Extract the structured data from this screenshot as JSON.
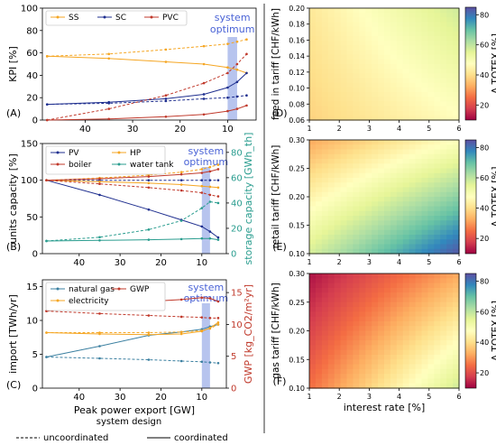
{
  "colors": {
    "ss": "#f5a623",
    "sc": "#1f2f8f",
    "pvc": "#c0392b",
    "pv": "#1f2f8f",
    "boiler": "#c0392b",
    "hp": "#f5a623",
    "water_tank": "#2a9d8f",
    "natural_gas": "#3a7fa0",
    "electricity": "#f5a623",
    "gwp": "#c0392b",
    "optimum_band": "#9fb0e8",
    "optimum_text": "#4a63d6",
    "storage_axis": "#2a9d8f",
    "gwp_axis": "#c0392b"
  },
  "optimum_label": [
    "system",
    "optimum"
  ],
  "legend_bottom": {
    "title": "system design",
    "dashed": "uncoordinated",
    "solid": "coordinated"
  },
  "chart_data": [
    {
      "id": "A",
      "panel_label": "(A)",
      "type": "line",
      "ylabel": "KPI [%]",
      "xlabel": "",
      "xlim": [
        49,
        4
      ],
      "ylim": [
        0,
        100
      ],
      "x_ticks": [
        40,
        30,
        20,
        10
      ],
      "y_ticks": [
        0,
        20,
        40,
        60,
        80,
        100
      ],
      "optimum_range": [
        10,
        8
      ],
      "legend": [
        "SS",
        "SC",
        "PVC"
      ],
      "series": [
        {
          "name": "SS",
          "style": "dashed",
          "color_key": "ss",
          "x": [
            48,
            35,
            23,
            15,
            10,
            8,
            6
          ],
          "y": [
            57,
            59,
            63,
            66,
            68,
            70,
            72
          ]
        },
        {
          "name": "SS",
          "style": "solid",
          "color_key": "ss",
          "x": [
            48,
            35,
            23,
            15,
            10,
            8,
            6
          ],
          "y": [
            57,
            55,
            52,
            50,
            47,
            45,
            42
          ]
        },
        {
          "name": "SC",
          "style": "dashed",
          "color_key": "sc",
          "x": [
            48,
            35,
            23,
            15,
            10,
            8,
            6
          ],
          "y": [
            14,
            15,
            17,
            19,
            20,
            21,
            22
          ]
        },
        {
          "name": "SC",
          "style": "solid",
          "color_key": "sc",
          "x": [
            48,
            35,
            23,
            15,
            10,
            8,
            6
          ],
          "y": [
            14,
            16,
            19,
            23,
            29,
            34,
            42
          ]
        },
        {
          "name": "PVC",
          "style": "dashed",
          "color_key": "pvc",
          "x": [
            48,
            35,
            23,
            15,
            10,
            8,
            6
          ],
          "y": [
            0,
            10,
            22,
            33,
            42,
            50,
            59
          ]
        },
        {
          "name": "PVC",
          "style": "solid",
          "color_key": "pvc",
          "x": [
            48,
            35,
            23,
            15,
            10,
            8,
            6
          ],
          "y": [
            0,
            1,
            3,
            5,
            8,
            10,
            13
          ]
        }
      ]
    },
    {
      "id": "B",
      "panel_label": "(B)",
      "type": "line",
      "ylabel": "units capacity [%]",
      "y2label": "storage capacity [GWh_th]",
      "xlabel": "",
      "xlim": [
        49,
        4
      ],
      "ylim": [
        0,
        150
      ],
      "y2lim": [
        0,
        87
      ],
      "x_ticks": [
        40,
        30,
        20,
        10
      ],
      "y_ticks": [
        0,
        50,
        100,
        150
      ],
      "y2_ticks": [
        0,
        20,
        40,
        60,
        80
      ],
      "optimum_range": [
        10,
        8
      ],
      "legend": [
        "PV",
        "HP",
        "boiler",
        "water tank"
      ],
      "series": [
        {
          "name": "PV",
          "style": "dashed",
          "color_key": "pv",
          "axis": "left",
          "x": [
            48,
            35,
            23,
            15,
            10,
            8,
            6
          ],
          "y": [
            100,
            100,
            100,
            100,
            100,
            100,
            100
          ]
        },
        {
          "name": "PV",
          "style": "solid",
          "color_key": "pv",
          "axis": "left",
          "x": [
            48,
            35,
            23,
            15,
            10,
            8,
            6
          ],
          "y": [
            100,
            80,
            60,
            46,
            37,
            30,
            22
          ]
        },
        {
          "name": "HP",
          "style": "dashed",
          "color_key": "hp",
          "axis": "left",
          "x": [
            48,
            35,
            23,
            15,
            10,
            8,
            6
          ],
          "y": [
            100,
            103,
            107,
            111,
            115,
            118,
            121
          ]
        },
        {
          "name": "HP",
          "style": "solid",
          "color_key": "hp",
          "axis": "left",
          "x": [
            48,
            35,
            23,
            15,
            10,
            8,
            6
          ],
          "y": [
            100,
            98,
            96,
            94,
            92,
            91,
            90
          ]
        },
        {
          "name": "boiler",
          "style": "dashed",
          "color_key": "boiler",
          "axis": "left",
          "x": [
            48,
            35,
            23,
            15,
            10,
            8,
            6
          ],
          "y": [
            100,
            95,
            90,
            86,
            83,
            80,
            78
          ]
        },
        {
          "name": "boiler",
          "style": "solid",
          "color_key": "boiler",
          "axis": "left",
          "x": [
            48,
            35,
            23,
            15,
            10,
            8,
            6
          ],
          "y": [
            100,
            102,
            105,
            108,
            110,
            112,
            115
          ]
        },
        {
          "name": "water tank",
          "style": "dashed",
          "color_key": "water_tank",
          "axis": "right",
          "x": [
            48,
            35,
            23,
            15,
            10,
            8,
            6
          ],
          "y": [
            10,
            13,
            19,
            26,
            36,
            41,
            40
          ]
        },
        {
          "name": "water tank",
          "style": "solid",
          "color_key": "water_tank",
          "axis": "right",
          "x": [
            48,
            35,
            23,
            15,
            10,
            8,
            6
          ],
          "y": [
            10,
            10.5,
            11,
            11.5,
            12,
            12,
            11
          ]
        }
      ]
    },
    {
      "id": "C",
      "panel_label": "(C)",
      "type": "line",
      "ylabel": "import [TWh/yr]",
      "y2label": "GWP [kg_CO2/m²yr]",
      "xlabel": "Peak power export [GW]",
      "xlim": [
        49,
        4
      ],
      "ylim": [
        0,
        16
      ],
      "y2lim": [
        0,
        17
      ],
      "x_ticks": [
        40,
        30,
        20,
        10
      ],
      "y_ticks": [
        0,
        5,
        10,
        15
      ],
      "y2_ticks": [
        0,
        5,
        10,
        15
      ],
      "optimum_range": [
        10,
        8
      ],
      "legend": [
        "natural gas",
        "GWP",
        "electricity"
      ],
      "series": [
        {
          "name": "natural gas",
          "style": "dashed",
          "color_key": "natural_gas",
          "axis": "left",
          "x": [
            48,
            35,
            23,
            15,
            10,
            8,
            6
          ],
          "y": [
            4.6,
            4.4,
            4.2,
            4.0,
            3.9,
            3.8,
            3.7
          ]
        },
        {
          "name": "natural gas",
          "style": "solid",
          "color_key": "natural_gas",
          "axis": "left",
          "x": [
            48,
            35,
            23,
            15,
            10,
            8,
            6
          ],
          "y": [
            4.6,
            6.2,
            7.8,
            8.3,
            8.7,
            9.1,
            9.4
          ]
        },
        {
          "name": "electricity",
          "style": "dashed",
          "color_key": "electricity",
          "axis": "left",
          "x": [
            48,
            35,
            23,
            15,
            10,
            8,
            6
          ],
          "y": [
            8.2,
            8.2,
            8.2,
            8.3,
            8.5,
            8.8,
            9.4
          ]
        },
        {
          "name": "electricity",
          "style": "solid",
          "color_key": "electricity",
          "axis": "left",
          "x": [
            48,
            35,
            23,
            15,
            10,
            8,
            6
          ],
          "y": [
            8.2,
            8.0,
            7.9,
            8.0,
            8.4,
            8.9,
            9.7
          ]
        },
        {
          "name": "GWP",
          "style": "dashed",
          "color_key": "gwp",
          "axis": "right",
          "x": [
            48,
            35,
            23,
            15,
            10,
            8,
            6
          ],
          "y": [
            12.1,
            11.7,
            11.4,
            11.2,
            11.1,
            11.0,
            11.0
          ]
        },
        {
          "name": "GWP",
          "style": "solid",
          "color_key": "gwp",
          "axis": "right",
          "x": [
            48,
            35,
            23,
            15,
            10,
            8,
            6
          ],
          "y": [
            12.1,
            13.0,
            13.6,
            13.9,
            14.2,
            14.1,
            13.6
          ]
        }
      ]
    },
    {
      "id": "D",
      "panel_label": "(D)",
      "type": "heatmap",
      "ylabel": "feed in tariff [CHF/kWh]",
      "xlabel": "",
      "colorbar_label": "Δ TOTEX [%]",
      "xlim": [
        1,
        6
      ],
      "ylim": [
        0.06,
        0.2
      ],
      "x_ticks": [
        1,
        2,
        3,
        4,
        5,
        6
      ],
      "y_ticks": [
        0.06,
        0.08,
        0.1,
        0.12,
        0.14,
        0.16,
        0.18,
        0.2
      ],
      "clim": [
        10,
        85
      ],
      "colorbar_ticks": [
        20,
        40,
        60,
        80
      ],
      "z_corners": {
        "x1_ymin": 38,
        "x1_ymax": 42,
        "x6_ymin": 47,
        "x6_ymax": 58
      }
    },
    {
      "id": "E",
      "panel_label": "(E)",
      "type": "heatmap",
      "ylabel": "retail tariff [CHF/kWh]",
      "xlabel": "",
      "colorbar_label": "Δ TOTEX [%]",
      "xlim": [
        1,
        6
      ],
      "ylim": [
        0.1,
        0.3
      ],
      "x_ticks": [
        1,
        2,
        3,
        4,
        5,
        6
      ],
      "y_ticks": [
        0.1,
        0.15,
        0.2,
        0.25,
        0.3
      ],
      "clim": [
        10,
        85
      ],
      "colorbar_ticks": [
        20,
        40,
        60,
        80
      ],
      "z_corners": {
        "x1_ymin": 57,
        "x1_ymax": 32,
        "x6_ymin": 84,
        "x6_ymax": 48
      }
    },
    {
      "id": "F",
      "panel_label": "(F)",
      "type": "heatmap",
      "ylabel": "gas tariff [CHF/kWh]",
      "xlabel": "interest rate  [%]",
      "colorbar_label": "Δ TOTEX [%]",
      "xlim": [
        1,
        6
      ],
      "ylim": [
        0.1,
        0.3
      ],
      "x_ticks": [
        1,
        2,
        3,
        4,
        5,
        6
      ],
      "y_ticks": [
        0.1,
        0.15,
        0.2,
        0.25,
        0.3
      ],
      "clim": [
        10,
        85
      ],
      "colorbar_ticks": [
        20,
        40,
        60,
        80
      ],
      "z_corners": {
        "x1_ymin": 25,
        "x1_ymax": 12,
        "x6_ymin": 58,
        "x6_ymax": 32
      }
    }
  ]
}
